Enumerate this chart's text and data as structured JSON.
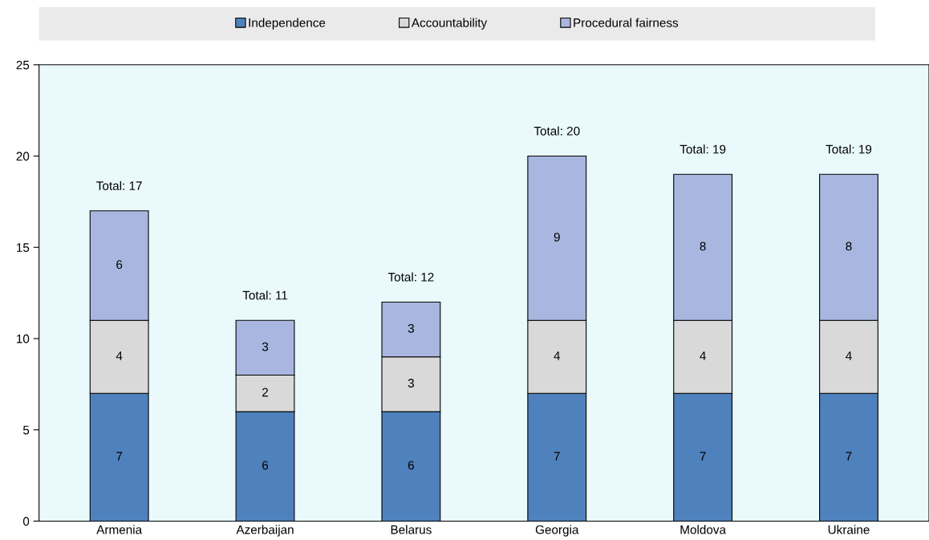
{
  "chart_data": {
    "type": "bar",
    "stacked": true,
    "categories": [
      "Armenia",
      "Azerbaijan",
      "Belarus",
      "Georgia",
      "Moldova",
      "Ukraine"
    ],
    "series": [
      {
        "name": "Independence",
        "color": "#4f81bd",
        "values": [
          7,
          6,
          6,
          7,
          7,
          7
        ]
      },
      {
        "name": "Accountability",
        "color": "#d9d9d9",
        "values": [
          4,
          2,
          3,
          4,
          4,
          4
        ]
      },
      {
        "name": "Procedural fairness",
        "color": "#a9b7e0",
        "values": [
          6,
          3,
          3,
          9,
          8,
          8
        ]
      }
    ],
    "ylim": [
      0,
      25
    ],
    "yticks": [
      0,
      5,
      10,
      15,
      20,
      25
    ],
    "data_labels": true,
    "totals": [
      "Total: 17",
      "Total: 11",
      "Total: 12",
      "Total: 20",
      "Total: 19",
      "Total: 19"
    ],
    "grid": false,
    "legend": "top"
  }
}
